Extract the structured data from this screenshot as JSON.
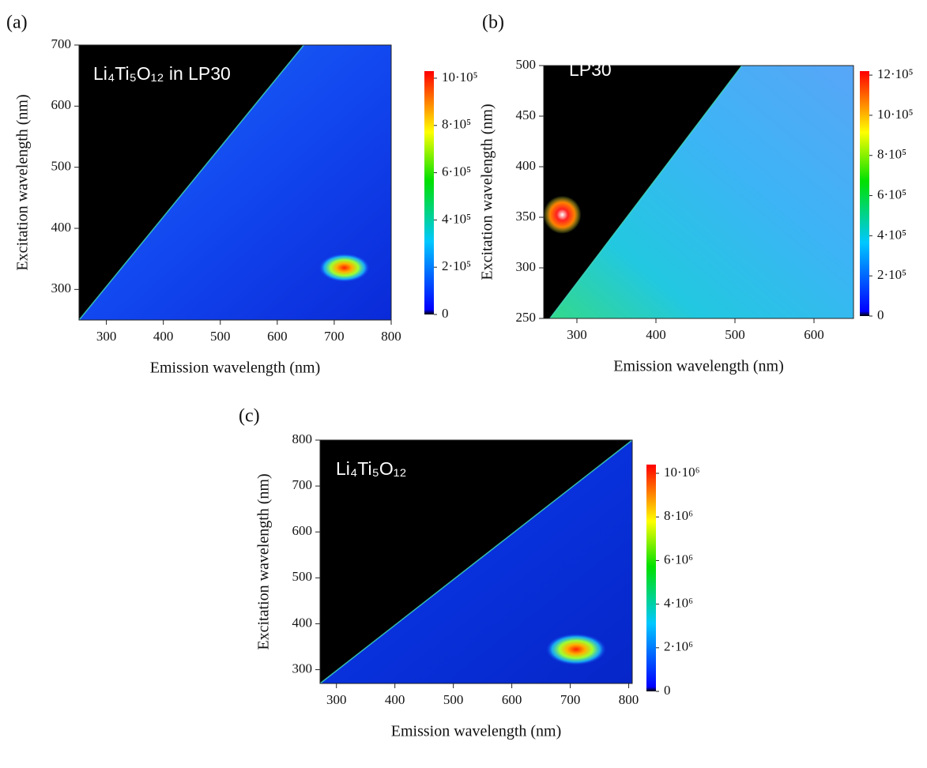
{
  "chart_data": [
    {
      "type": "heatmap",
      "panel_label": "(a)",
      "annotation": "Li₄Ti₅O₁₂ in LP30",
      "xlabel": "Emission wavelength (nm)",
      "ylabel": "Excitation wavelength (nm)",
      "xlim": [
        252,
        800
      ],
      "xticks": [
        300,
        400,
        500,
        600,
        700,
        800
      ],
      "ylim": [
        250,
        700
      ],
      "yticks": [
        300,
        400,
        500,
        600,
        700
      ],
      "clim": [
        0,
        1030000
      ],
      "cticks": [
        {
          "value": 0,
          "label": "0"
        },
        {
          "value": 200000,
          "label": "2·10⁵"
        },
        {
          "value": 400000,
          "label": "4·10⁵"
        },
        {
          "value": 600000,
          "label": "6·10⁵"
        },
        {
          "value": 800000,
          "label": "8·10⁵"
        },
        {
          "value": 1000000,
          "label": "10·10⁵"
        }
      ]
    },
    {
      "type": "heatmap",
      "panel_label": "(b)",
      "annotation": "LP30",
      "xlabel": "Emission wavelength (nm)",
      "ylabel": "Excitation wavelength (nm)",
      "xlim": [
        258,
        650
      ],
      "xticks": [
        300,
        400,
        500,
        600
      ],
      "ylim": [
        250,
        500
      ],
      "yticks": [
        250,
        300,
        350,
        400,
        450,
        500
      ],
      "clim": [
        0,
        1220000
      ],
      "cticks": [
        {
          "value": 0,
          "label": "0"
        },
        {
          "value": 200000,
          "label": "2·10⁵"
        },
        {
          "value": 400000,
          "label": "4·10⁵"
        },
        {
          "value": 600000,
          "label": "6·10⁵"
        },
        {
          "value": 800000,
          "label": "8·10⁵"
        },
        {
          "value": 1000000,
          "label": "10·10⁵"
        },
        {
          "value": 1200000,
          "label": "12·10⁵"
        }
      ]
    },
    {
      "type": "heatmap",
      "panel_label": "(c)",
      "annotation": "Li₄Ti₅O₁₂",
      "xlabel": "Emission wavelength (nm)",
      "ylabel": "Excitation wavelength (nm)",
      "xlim": [
        272,
        806
      ],
      "xticks": [
        300,
        400,
        500,
        600,
        700,
        800
      ],
      "ylim": [
        270,
        800
      ],
      "yticks": [
        300,
        400,
        500,
        600,
        700,
        800
      ],
      "clim": [
        0,
        10400000
      ],
      "cticks": [
        {
          "value": 0,
          "label": "0"
        },
        {
          "value": 2000000,
          "label": "2·10⁶"
        },
        {
          "value": 4000000,
          "label": "4·10⁶"
        },
        {
          "value": 6000000,
          "label": "6·10⁶"
        },
        {
          "value": 8000000,
          "label": "8·10⁶"
        },
        {
          "value": 10000000,
          "label": "10·10⁶"
        }
      ]
    }
  ]
}
